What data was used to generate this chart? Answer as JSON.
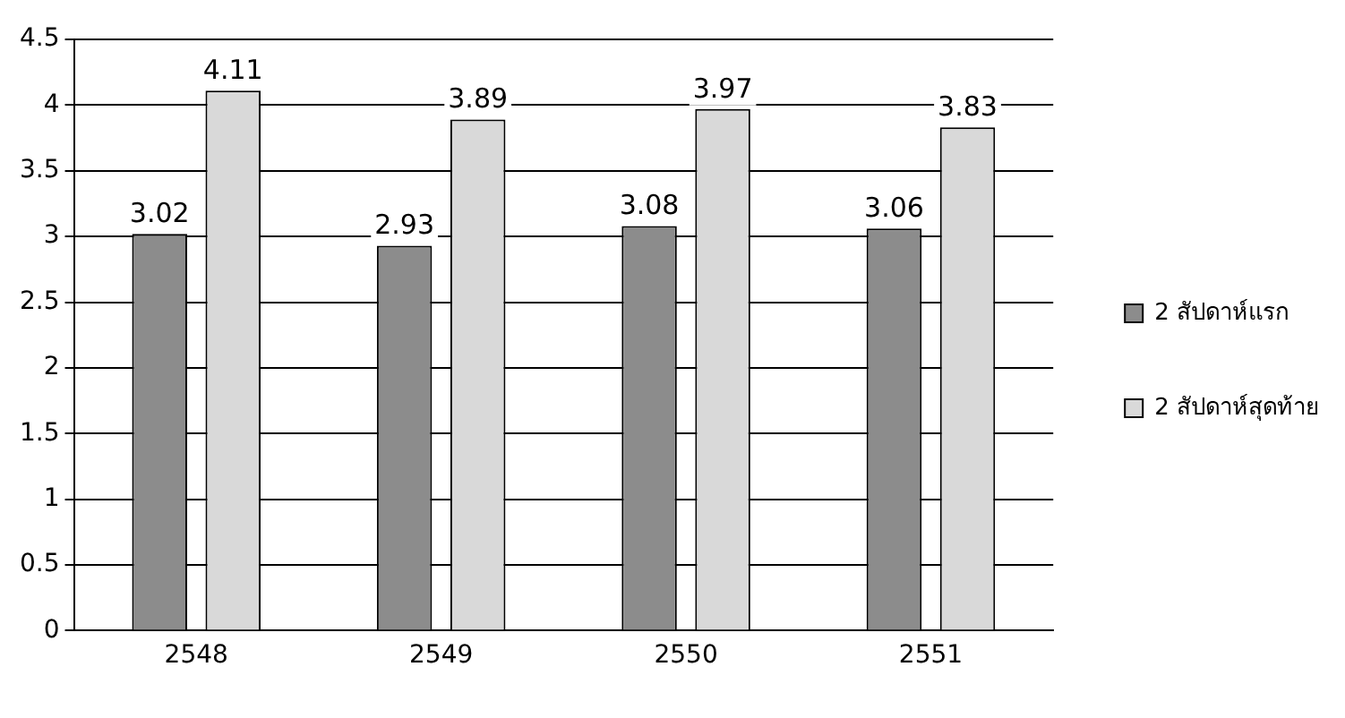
{
  "chart_data": {
    "type": "bar",
    "categories": [
      "2548",
      "2549",
      "2550",
      "2551"
    ],
    "series": [
      {
        "name": "2 สัปดาห์แรก",
        "color": "#8c8c8c",
        "values": [
          3.02,
          2.93,
          3.08,
          3.06
        ]
      },
      {
        "name": "2 สัปดาห์สุดท้าย",
        "color": "#d9d9d9",
        "values": [
          4.11,
          3.89,
          3.97,
          3.83
        ]
      }
    ],
    "ylim": [
      0,
      4.5
    ],
    "yticks": [
      0,
      0.5,
      1,
      1.5,
      2,
      2.5,
      3,
      3.5,
      4,
      4.5
    ],
    "grid": "y",
    "legend": "right",
    "data_labels": true
  }
}
